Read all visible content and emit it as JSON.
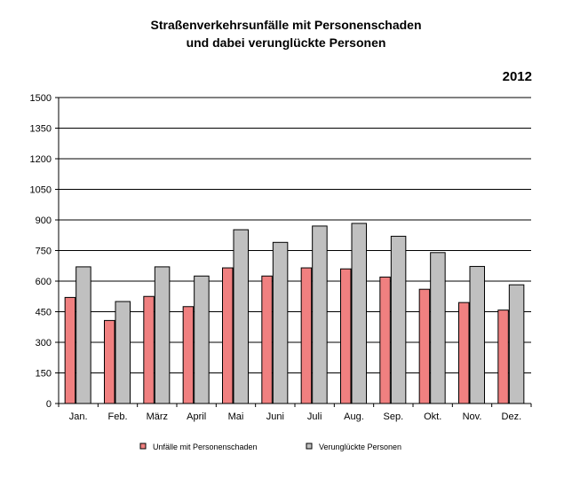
{
  "chart_data": {
    "type": "bar",
    "title": "Straßenverkehrsunfälle mit Personenschaden",
    "subtitle": "und dabei verunglückte Personen",
    "year_label": "2012",
    "categories": [
      "Jan.",
      "Feb.",
      "März",
      "April",
      "Mai",
      "Juni",
      "Juli",
      "Aug.",
      "Sep.",
      "Okt.",
      "Nov.",
      "Dez."
    ],
    "series": [
      {
        "name": "Unfälle mit Personenschaden",
        "color": "#f08080",
        "values": [
          520,
          407,
          525,
          475,
          665,
          625,
          665,
          660,
          620,
          560,
          495,
          458
        ]
      },
      {
        "name": "Verunglückte Personen",
        "color": "#c0c0c0",
        "values": [
          670,
          500,
          670,
          625,
          852,
          790,
          870,
          883,
          820,
          740,
          672,
          582
        ]
      }
    ],
    "ylim": [
      0,
      1500
    ],
    "yticks": [
      0,
      150,
      300,
      450,
      600,
      750,
      900,
      1050,
      1200,
      1350,
      1500
    ],
    "grid": true,
    "legend_position": "bottom"
  }
}
